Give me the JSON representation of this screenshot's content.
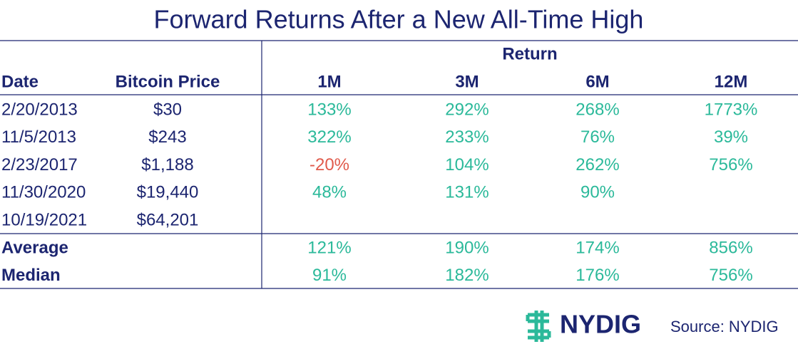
{
  "title": "Forward Returns After a New All-Time High",
  "table": {
    "group_header": "Return",
    "columns": [
      "Date",
      "Bitcoin Price",
      "1M",
      "3M",
      "6M",
      "12M"
    ],
    "rows": [
      [
        "2/20/2013",
        "$30",
        "133%",
        "292%",
        "268%",
        "1773%"
      ],
      [
        "11/5/2013",
        "$243",
        "322%",
        "233%",
        "76%",
        "39%"
      ],
      [
        "2/23/2017",
        "$1,188",
        "-20%",
        "104%",
        "262%",
        "756%"
      ],
      [
        "11/30/2020",
        "$19,440",
        "48%",
        "131%",
        "90%",
        null
      ],
      [
        "10/19/2021",
        "$64,201",
        null,
        null,
        null,
        null
      ]
    ],
    "summary_rows": [
      [
        "Average",
        null,
        "121%",
        "190%",
        "174%",
        "856%"
      ],
      [
        "Median",
        null,
        "91%",
        "182%",
        "176%",
        "756%"
      ]
    ]
  },
  "footer": {
    "logo": "NYDIG",
    "source": "Source: NYDIG"
  }
}
